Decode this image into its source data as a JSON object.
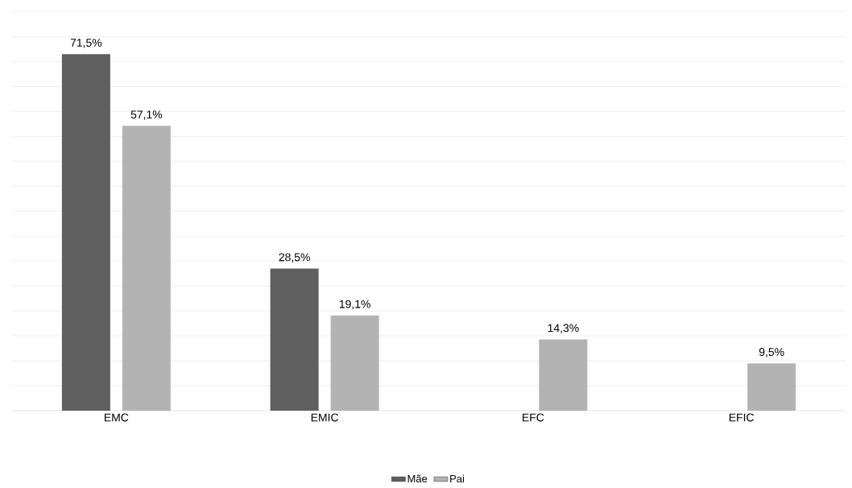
{
  "chart_data": {
    "type": "bar",
    "categories": [
      "EMC",
      "EMIC",
      "EFC",
      "EFIC"
    ],
    "series": [
      {
        "name": "Mãe",
        "color": "#5f5f5f",
        "values": [
          71.5,
          28.5,
          null,
          null
        ],
        "value_labels": [
          "71,5%",
          "28,5%",
          null,
          null
        ]
      },
      {
        "name": "Pai",
        "color": "#b3b3b3",
        "values": [
          57.1,
          19.1,
          14.3,
          9.5
        ],
        "value_labels": [
          "57,1%",
          "19,1%",
          "14,3%",
          "9,5%"
        ]
      }
    ],
    "tick_labels": "x",
    "grid": "y",
    "legend": "bottom"
  }
}
